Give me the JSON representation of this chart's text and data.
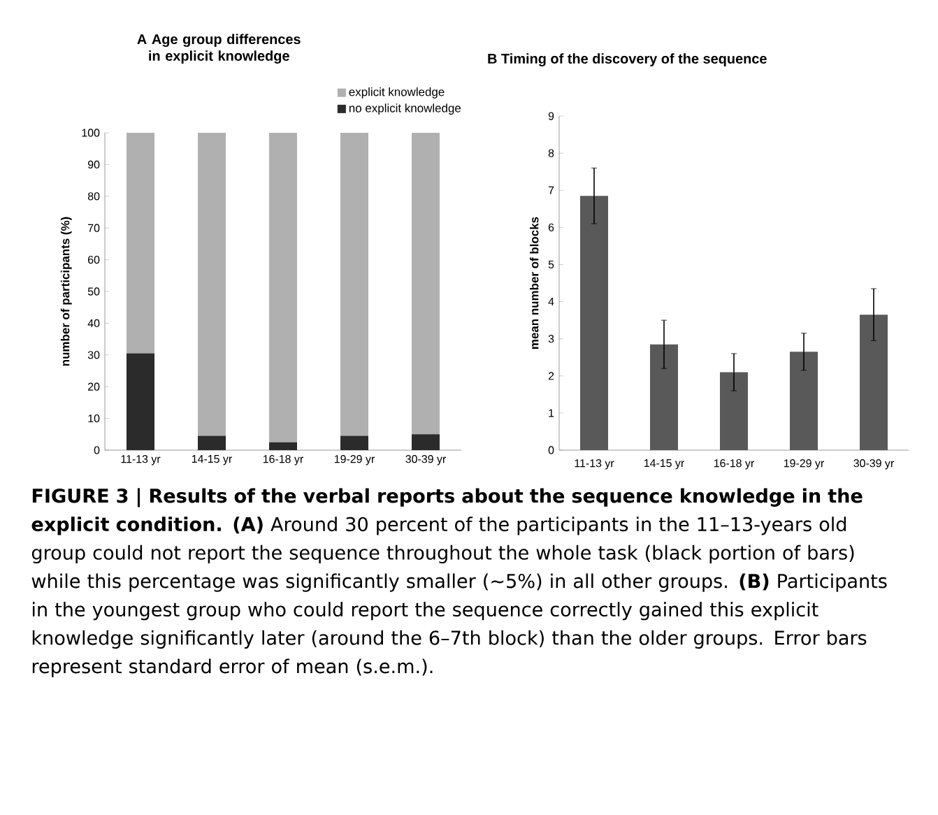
{
  "chart_data": [
    {
      "type": "bar",
      "title": "A Age group differences in explicit knowledge",
      "ylabel": "number of participants (%)",
      "stacked": true,
      "legend": "top right",
      "categories": [
        "11-13 yr",
        "14-15 yr",
        "16-18 yr",
        "19-29 yr",
        "30-39 yr"
      ],
      "series": [
        {
          "name": "no explicit knowledge",
          "color": "#2b2b2b",
          "values": [
            30.5,
            4.5,
            2.5,
            4.5,
            5
          ]
        },
        {
          "name": "explicit knowledge",
          "color": "#b0b0b0",
          "values": [
            69.5,
            95.5,
            97.5,
            95.5,
            95
          ]
        }
      ],
      "ylim": [
        0,
        100
      ],
      "yticks": [
        0,
        10,
        20,
        30,
        40,
        50,
        60,
        70,
        80,
        90,
        100
      ],
      "annotations": [
        "**FIGURE 3 | Results of the verbal reports about the sequence knowledge in the explicit condition. (A)** Around 30 percent of the participants in the 11–13-years old group could not report the sequence throughout the whole task (black portion of bars) while this percentage was significantly smaller (∼5%) in all other groups. **(B)** Participants in the youngest group who could report the sequence correctly gained this explicit knowledge significantly later (around the 6–7th block) than the older groups. Error bars represent standard error of mean (s.e.m.)."
      ]
    },
    {
      "type": "bar",
      "title": "B Timing of the discovery of the sequence",
      "ylabel": "mean number of blocks",
      "categories": [
        "11-13 yr",
        "14-15 yr",
        "16-18 yr",
        "19-29 yr",
        "30-39 yr"
      ],
      "series": [
        {
          "color": "#595959",
          "values": [
            6.85,
            2.85,
            2.1,
            2.65,
            3.65
          ],
          "errors": [
            0.75,
            0.65,
            0.5,
            0.5,
            0.7
          ]
        }
      ],
      "ylim": [
        0,
        9
      ],
      "yticks": [
        0,
        1,
        2,
        3,
        4,
        5,
        6,
        7,
        8,
        9
      ]
    }
  ]
}
